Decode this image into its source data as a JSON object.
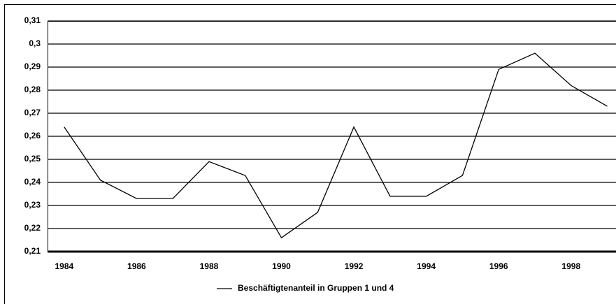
{
  "chart_data": {
    "type": "line",
    "x": [
      1984,
      1985,
      1986,
      1987,
      1988,
      1989,
      1990,
      1991,
      1992,
      1993,
      1994,
      1995,
      1996,
      1997,
      1998,
      1999
    ],
    "series": [
      {
        "name": "Beschäftigtenanteil in Gruppen 1 und 4",
        "color": "#000000",
        "values": [
          0.264,
          0.241,
          0.233,
          0.233,
          0.249,
          0.243,
          0.216,
          0.227,
          0.264,
          0.234,
          0.234,
          0.243,
          0.289,
          0.296,
          0.282,
          0.273
        ]
      }
    ],
    "xlim": [
      1983.54,
      1999.24
    ],
    "xticks": [
      1984,
      1986,
      1988,
      1990,
      1992,
      1994,
      1996,
      1998
    ],
    "ylim": [
      0.21,
      0.31
    ],
    "yticks": [
      {
        "value": 0.21,
        "label": "0,21"
      },
      {
        "value": 0.22,
        "label": "0,22"
      },
      {
        "value": 0.23,
        "label": "0,23"
      },
      {
        "value": 0.24,
        "label": "0,24"
      },
      {
        "value": 0.25,
        "label": "0,25"
      },
      {
        "value": 0.26,
        "label": "0,26"
      },
      {
        "value": 0.27,
        "label": "0,27"
      },
      {
        "value": 0.28,
        "label": "0,28"
      },
      {
        "value": 0.29,
        "label": "0,29"
      },
      {
        "value": 0.3,
        "label": "0,3"
      },
      {
        "value": 0.31,
        "label": "0,31"
      }
    ],
    "grid": true,
    "legend": "bottom"
  }
}
